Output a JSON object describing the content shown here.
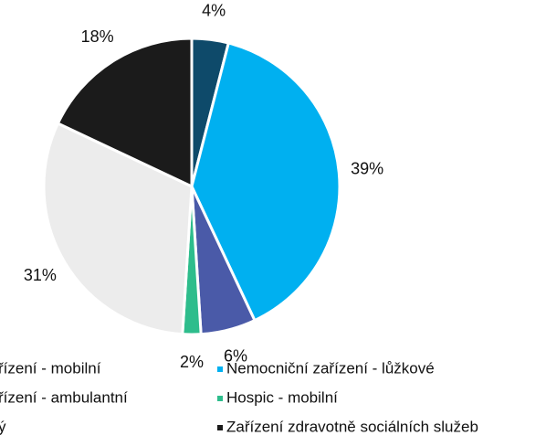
{
  "chart_data": {
    "type": "pie",
    "categories": [
      "řízení - mobilní",
      "Nemocniční zařízení - lůžkové",
      "řízení - ambulantní",
      "Hospic - mobilní",
      "ý",
      "Zařízení zdravotně sociálních služeb"
    ],
    "values": [
      4,
      39,
      6,
      2,
      31,
      18
    ],
    "value_labels": [
      "4%",
      "39%",
      "6%",
      "2%",
      "31%",
      "18%"
    ],
    "colors": [
      "#0e4a6a",
      "#00b0f0",
      "#4a5aa8",
      "#2ebd8c",
      "#ececec",
      "#1b1b1b"
    ]
  }
}
